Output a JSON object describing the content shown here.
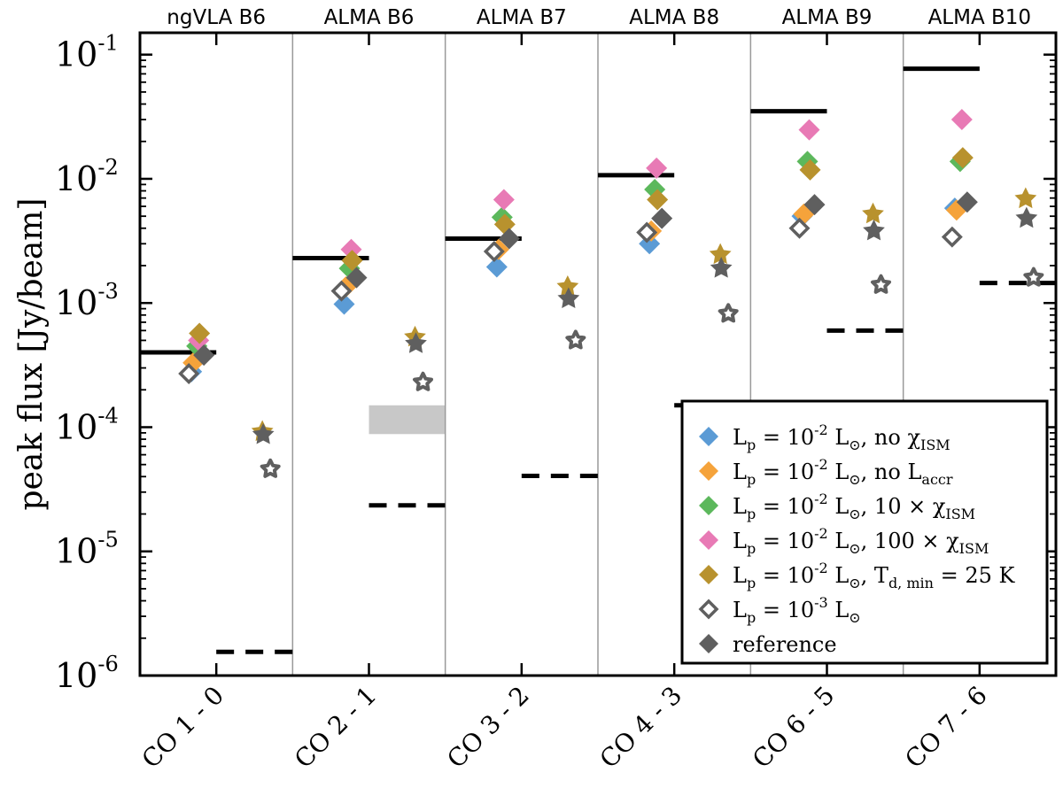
{
  "chart_data": {
    "type": "scatter",
    "ylabel": "peak flux [Jy/beam]",
    "yscale": "log",
    "ylim": [
      1e-06,
      0.15
    ],
    "yticks": [
      {
        "value": 1e-06,
        "base": "10",
        "exp": "-6"
      },
      {
        "value": 1e-05,
        "base": "10",
        "exp": "-5"
      },
      {
        "value": 0.0001,
        "base": "10",
        "exp": "-4"
      },
      {
        "value": 0.001,
        "base": "10",
        "exp": "-3"
      },
      {
        "value": 0.01,
        "base": "10",
        "exp": "-2"
      },
      {
        "value": 0.1,
        "base": "10",
        "exp": "-1"
      }
    ],
    "categories": [
      "CO 1 - 0",
      "CO 2 - 1",
      "CO 3 - 2",
      "CO 4 - 3",
      "CO 6 - 5",
      "CO 7 - 6"
    ],
    "bands": [
      "ngVLA B6",
      "ALMA B6",
      "ALMA B7",
      "ALMA B8",
      "ALMA B9",
      "ALMA B10"
    ],
    "series": [
      {
        "name": "Lp = 1e-2 Lsun, no chi_ISM",
        "marker": "diamond",
        "color": "#5b9bd5",
        "filled": true,
        "diamond_values": [
          0.00028,
          0.00098,
          0.00195,
          0.003,
          0.005,
          0.0058
        ],
        "star_values": [
          null,
          null,
          null,
          null,
          null,
          null
        ]
      },
      {
        "name": "Lp = 1e-2 Lsun, no Laccr",
        "marker": "diamond",
        "color": "#f5a33b",
        "filled": true,
        "diamond_values": [
          0.00033,
          0.00135,
          0.0027,
          0.0038,
          0.0052,
          0.0056
        ],
        "star_values": [
          null,
          null,
          null,
          null,
          null,
          null
        ]
      },
      {
        "name": "Lp = 1e-2 Lsun, 10 x chi_ISM",
        "marker": "diamond",
        "color": "#5cb85c",
        "filled": true,
        "diamond_values": [
          0.00045,
          0.0019,
          0.0049,
          0.0082,
          0.0138,
          0.0138
        ],
        "star_values": [
          null,
          null,
          null,
          null,
          null,
          null
        ]
      },
      {
        "name": "Lp = 1e-2 Lsun, 100 x chi_ISM",
        "marker": "diamond",
        "color": "#e87ab5",
        "filled": true,
        "diamond_values": [
          0.0005,
          0.0027,
          0.0068,
          0.0122,
          0.0248,
          0.03
        ],
        "star_values": [
          null,
          null,
          null,
          null,
          null,
          null
        ]
      },
      {
        "name": "Lp = 1e-2 Lsun, Td,min = 25 K",
        "marker": "diamond",
        "color": "#b8922e",
        "filled": true,
        "diamond_values": [
          0.00057,
          0.0022,
          0.0043,
          0.0068,
          0.0118,
          0.0148
        ],
        "star_values": [
          9.2e-05,
          0.00053,
          0.00135,
          0.00245,
          0.0052,
          0.0069
        ]
      },
      {
        "name": "Lp = 1e-3 Lsun",
        "marker": "diamond",
        "color": "#5f5f5f",
        "filled": false,
        "diamond_values": [
          0.00027,
          0.00125,
          0.0026,
          0.0037,
          0.004,
          0.0034
        ],
        "star_values": [
          4.6e-05,
          0.00023,
          0.0005,
          0.00082,
          0.0014,
          0.0016
        ]
      },
      {
        "name": "reference",
        "marker": "diamond",
        "color": "#5f5f5f",
        "filled": true,
        "diamond_values": [
          0.00038,
          0.0016,
          0.0033,
          0.0048,
          0.0062,
          0.0065
        ],
        "star_values": [
          8.7e-05,
          0.00047,
          0.00108,
          0.0019,
          0.0038,
          0.0048
        ]
      }
    ],
    "solid_lines": [
      0.0004,
      0.0023,
      0.0033,
      0.0107,
      0.035,
      0.077
    ],
    "dashed_lines": [
      1.55e-06,
      2.35e-05,
      4.05e-05,
      0.00015,
      0.0006,
      0.00145
    ],
    "shaded_region": {
      "category": "CO 2 - 1",
      "low": 8.8e-05,
      "high": 0.00015
    },
    "legend_position": "bottom-right"
  },
  "legend": {
    "items": [
      {
        "sym": "L",
        "sub": "p",
        "eq": " = 10",
        "exp": "-2",
        "lsym": " L",
        "lsub": "⊙",
        "rest": ", no χ",
        "rsub": "ISM",
        "tail": ""
      },
      {
        "sym": "L",
        "sub": "p",
        "eq": " = 10",
        "exp": "-2",
        "lsym": " L",
        "lsub": "⊙",
        "rest": ", no L",
        "rsub": "accr",
        "tail": ""
      },
      {
        "sym": "L",
        "sub": "p",
        "eq": " = 10",
        "exp": "-2",
        "lsym": " L",
        "lsub": "⊙",
        "rest": ", 10 × χ",
        "rsub": "ISM",
        "tail": ""
      },
      {
        "sym": "L",
        "sub": "p",
        "eq": " = 10",
        "exp": "-2",
        "lsym": " L",
        "lsub": "⊙",
        "rest": ", 100 × χ",
        "rsub": "ISM",
        "tail": ""
      },
      {
        "sym": "L",
        "sub": "p",
        "eq": " = 10",
        "exp": "-2",
        "lsym": " L",
        "lsub": "⊙",
        "rest": ", T",
        "rsub": "d, min",
        "tail": " = 25 K"
      },
      {
        "sym": "L",
        "sub": "p",
        "eq": " = 10",
        "exp": "-3",
        "lsym": " L",
        "lsub": "⊙",
        "rest": "",
        "rsub": "",
        "tail": ""
      },
      {
        "sym": "",
        "sub": "",
        "eq": "",
        "exp": "",
        "lsym": "",
        "lsub": "",
        "rest": "reference",
        "rsub": "",
        "tail": ""
      }
    ]
  }
}
